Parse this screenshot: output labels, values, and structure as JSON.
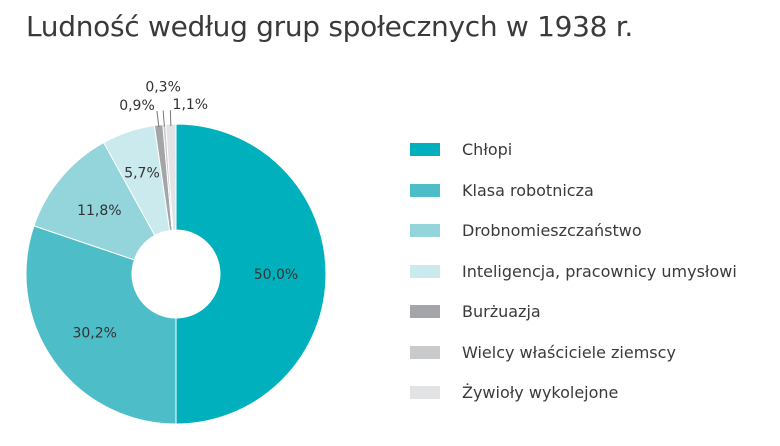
{
  "title": "Ludność według grup społecznych w 1938 r.",
  "chart_data": {
    "type": "pie",
    "variant": "donut",
    "title": "Ludność według grup społecznych w 1938 r.",
    "legend_position": "right",
    "series": [
      {
        "name": "Chłopi",
        "value": 50.0,
        "label": "50,0%",
        "color": "#00b0bc"
      },
      {
        "name": "Klasa robotnicza",
        "value": 30.2,
        "label": "30,2%",
        "color": "#4dbec8"
      },
      {
        "name": "Drobnomieszczaństwo",
        "value": 11.8,
        "label": "11,8%",
        "color": "#94d5dc"
      },
      {
        "name": "Inteligencja, pracownicy umysłowi",
        "value": 5.7,
        "label": "5,7%",
        "color": "#cbeaee"
      },
      {
        "name": "Burżuazja",
        "value": 0.9,
        "label": "0,9%",
        "color": "#a3a5a8"
      },
      {
        "name": "Wielcy właściciele ziemscy",
        "value": 0.3,
        "label": "0,3%",
        "color": "#c9cacc"
      },
      {
        "name": "Żywioły wykolejone",
        "value": 1.1,
        "label": "1,1%",
        "color": "#e2e3e4"
      }
    ]
  }
}
